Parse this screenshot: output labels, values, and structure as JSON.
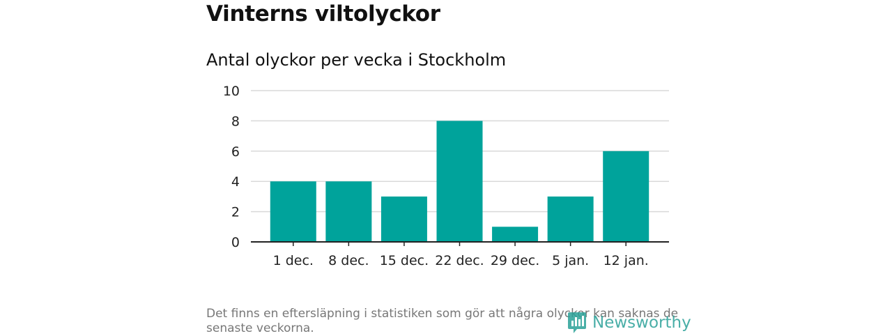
{
  "header": {
    "title": "Vinterns viltolyckor",
    "subtitle": "Antal olyckor per vecka i Stockholm"
  },
  "chart_data": {
    "type": "bar",
    "title": "Antal olyckor per vecka i Stockholm",
    "xlabel": "",
    "ylabel": "",
    "categories": [
      "1 dec.",
      "8 dec.",
      "15 dec.",
      "22 dec.",
      "29 dec.",
      "5 jan.",
      "12 jan."
    ],
    "values": [
      4,
      4,
      3,
      8,
      1,
      3,
      6
    ],
    "ylim": [
      0,
      10
    ],
    "yticks": [
      0,
      2,
      4,
      6,
      8,
      10
    ],
    "grid": true,
    "bar_color": "#00a39b",
    "grid_color": "#d9d9d9",
    "axis_color": "#222222"
  },
  "footer": {
    "note": "Det finns en eftersläpning i statistiken som gör att några olyckor kan saknas de senaste veckorna.",
    "brand_name": "Newsworthy",
    "brand_color": "#2aa198",
    "brand_icon": "newsworthy-logo-icon"
  }
}
